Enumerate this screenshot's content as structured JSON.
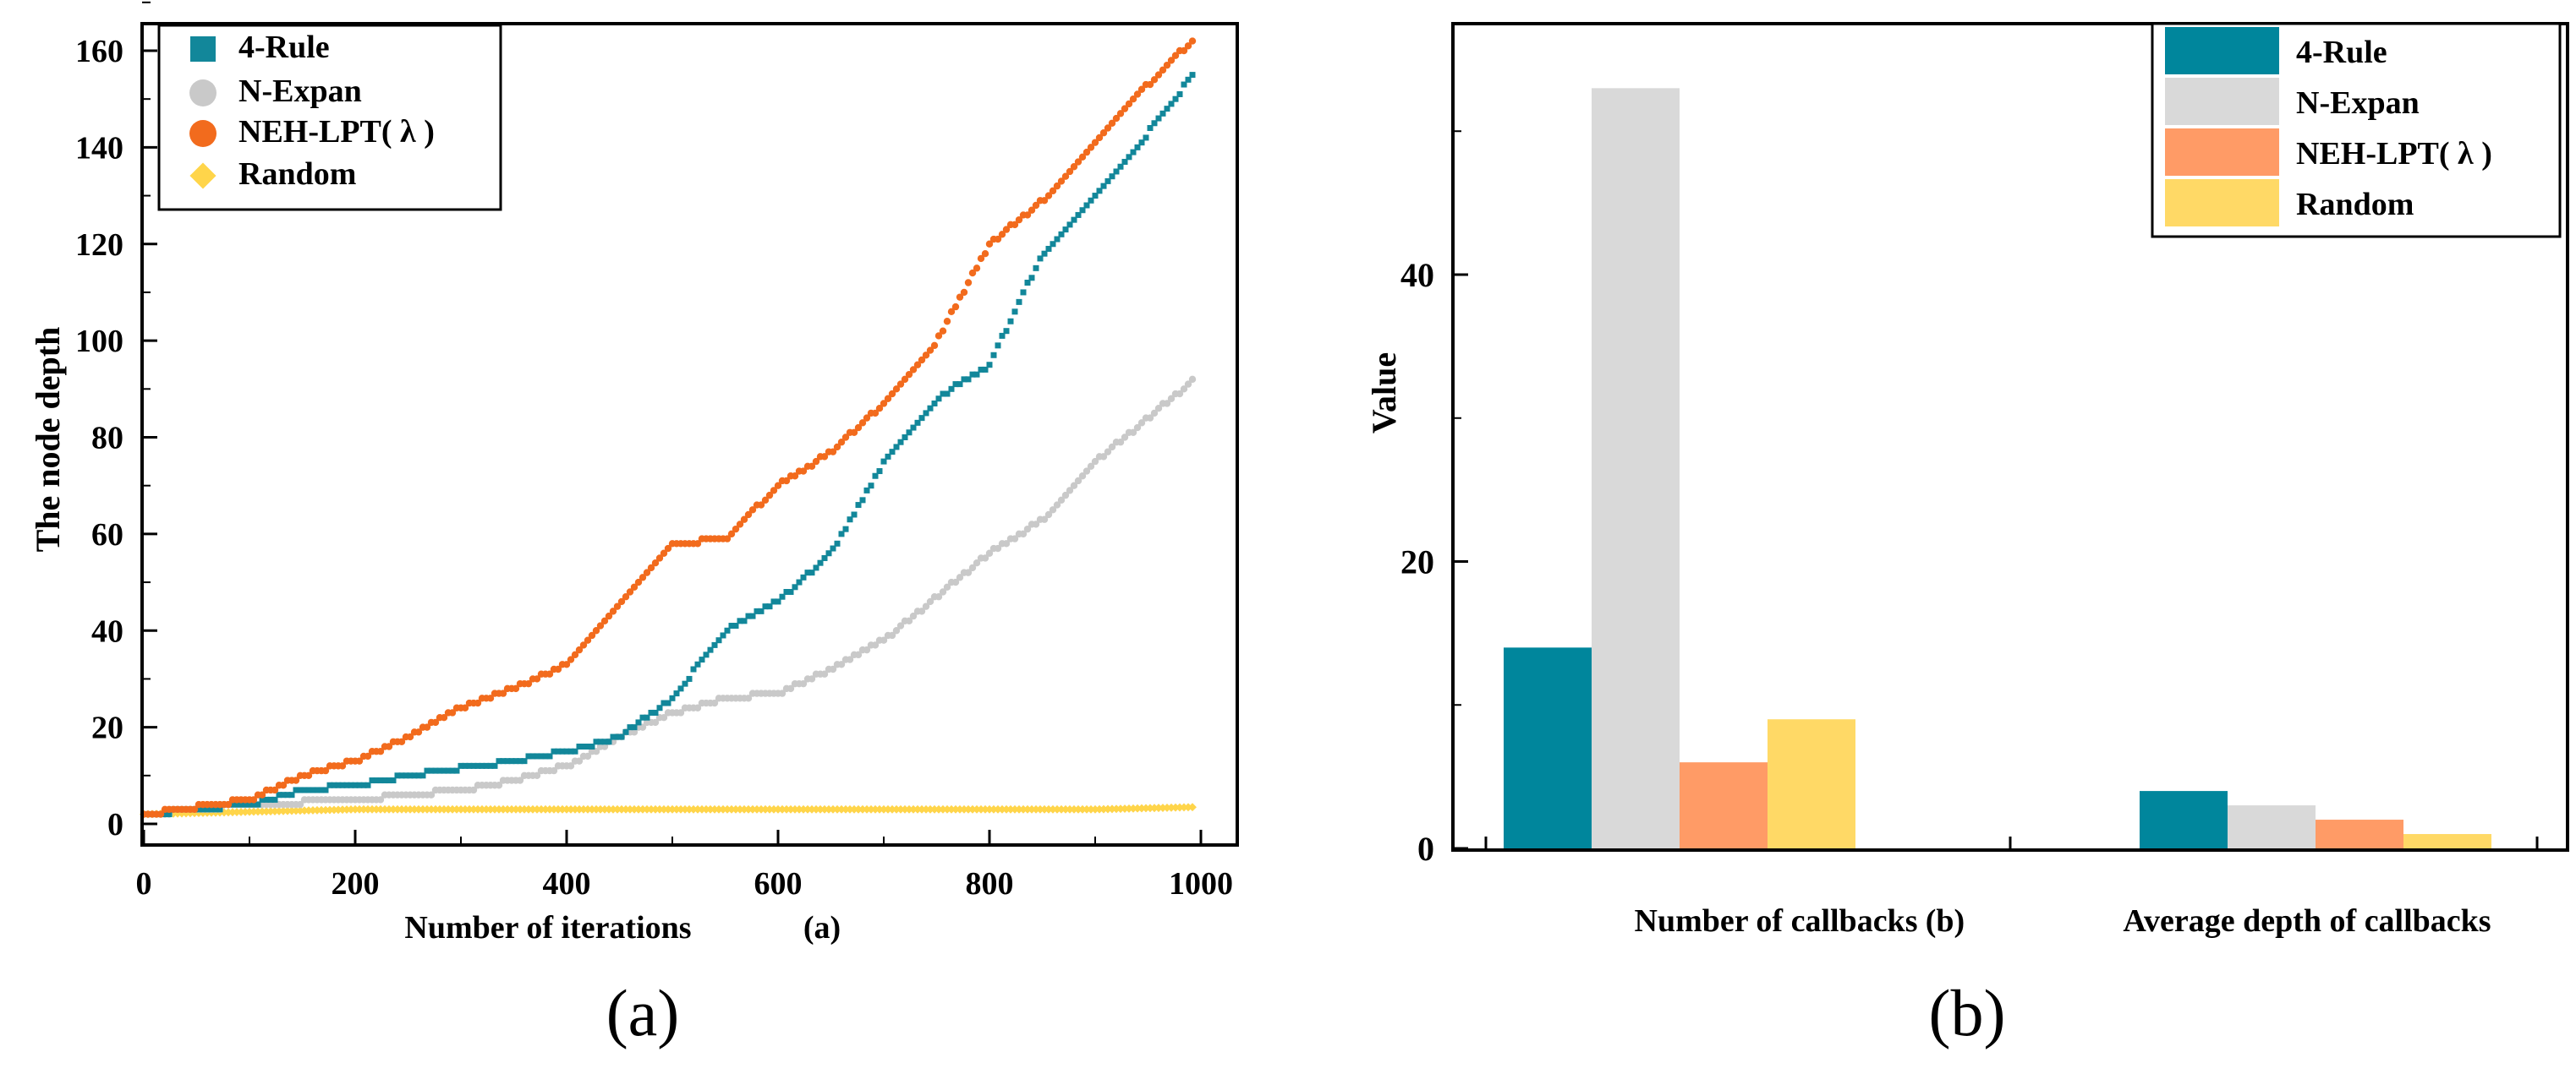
{
  "colors": {
    "teal": "#12879A",
    "gray": "#C9C9C9",
    "orange": "#F26B1D",
    "yellow": "#FFD54A",
    "bar_teal": "#00869C",
    "bar_gray": "#D9D9D9",
    "bar_orange": "#FF9B66",
    "bar_yellow": "#FFD966"
  },
  "chart_data": [
    {
      "type": "scatter",
      "panel": "(a)",
      "title": "",
      "xlabel": "Number of iterations",
      "xlabel_tag": "(a)",
      "ylabel": "The node depth",
      "xlim": [
        0,
        1000
      ],
      "ylim": [
        0,
        170
      ],
      "xticks": [
        {
          "value": 0,
          "label": "0"
        },
        {
          "value": 200,
          "label": "200"
        },
        {
          "value": 400,
          "label": "400"
        },
        {
          "value": 600,
          "label": "600"
        },
        {
          "value": 800,
          "label": "800"
        },
        {
          "value": 1000,
          "label": "1000"
        }
      ],
      "yticks": [
        {
          "value": 0,
          "label": "0"
        },
        {
          "value": 20,
          "label": "20"
        },
        {
          "value": 40,
          "label": "40"
        },
        {
          "value": 60,
          "label": "60"
        },
        {
          "value": 80,
          "label": "80"
        },
        {
          "value": 100,
          "label": "100"
        },
        {
          "value": 120,
          "label": "120"
        },
        {
          "value": 140,
          "label": "140"
        },
        {
          "value": 160,
          "label": "160"
        }
      ],
      "legend": [
        "4-Rule",
        "N-Expan",
        "NEH-LPT( λ )",
        "Random"
      ],
      "series": [
        {
          "name": "4-Rule",
          "marker": "square",
          "color": "#12879A",
          "x": [
            0,
            100,
            150,
            200,
            280,
            350,
            400,
            450,
            500,
            550,
            600,
            650,
            700,
            750,
            800,
            850,
            900,
            950,
            1000
          ],
          "y": [
            2,
            4,
            7,
            8,
            11,
            13,
            15,
            18,
            26,
            40,
            46,
            56,
            75,
            88,
            95,
            118,
            130,
            143,
            157
          ]
        },
        {
          "name": "N-Expan",
          "marker": "circle",
          "color": "#C9C9C9",
          "x": [
            0,
            100,
            200,
            300,
            350,
            400,
            450,
            500,
            550,
            600,
            650,
            700,
            750,
            800,
            850,
            900,
            950,
            1000
          ],
          "y": [
            2,
            4,
            5,
            7,
            9,
            12,
            18,
            23,
            26,
            27,
            32,
            38,
            47,
            56,
            63,
            75,
            84,
            93
          ]
        },
        {
          "name": "NEH-LPT( λ )",
          "marker": "circle",
          "color": "#F26B1D",
          "x": [
            0,
            100,
            150,
            200,
            250,
            300,
            350,
            400,
            450,
            500,
            550,
            600,
            650,
            700,
            750,
            800,
            850,
            900,
            950,
            1000
          ],
          "y": [
            2,
            5,
            10,
            13,
            18,
            24,
            28,
            33,
            46,
            58,
            59,
            70,
            77,
            87,
            100,
            120,
            129,
            141,
            153,
            164
          ]
        },
        {
          "name": "Random",
          "marker": "diamond",
          "color": "#FFD54A",
          "x": [
            0,
            100,
            200,
            300,
            400,
            500,
            600,
            700,
            800,
            900,
            1000
          ],
          "y": [
            2,
            2.5,
            3,
            3,
            3,
            3,
            3,
            3,
            3,
            3,
            3.5
          ]
        }
      ]
    },
    {
      "type": "bar",
      "panel": "(b)",
      "title": "",
      "ylabel": "Value",
      "xlabel_tag": "(b)",
      "ylim": [
        0,
        58
      ],
      "yticks": [
        {
          "value": 0,
          "label": "0"
        },
        {
          "value": 20,
          "label": "20"
        },
        {
          "value": 40,
          "label": "40"
        }
      ],
      "categories": [
        "Number of callbacks",
        "Average depth of callbacks"
      ],
      "legend": [
        "4-Rule",
        "N-Expan",
        "NEH-LPT( λ )",
        "Random"
      ],
      "series": [
        {
          "name": "4-Rule",
          "color": "#00869C",
          "values": [
            14,
            4
          ]
        },
        {
          "name": "N-Expan",
          "color": "#D9D9D9",
          "values": [
            53,
            3
          ]
        },
        {
          "name": "NEH-LPT( λ )",
          "color": "#FF9B66",
          "values": [
            6,
            2
          ]
        },
        {
          "name": "Random",
          "color": "#FFD966",
          "values": [
            9,
            1
          ]
        }
      ]
    }
  ],
  "panel_labels": [
    "(a)",
    "(b)"
  ]
}
